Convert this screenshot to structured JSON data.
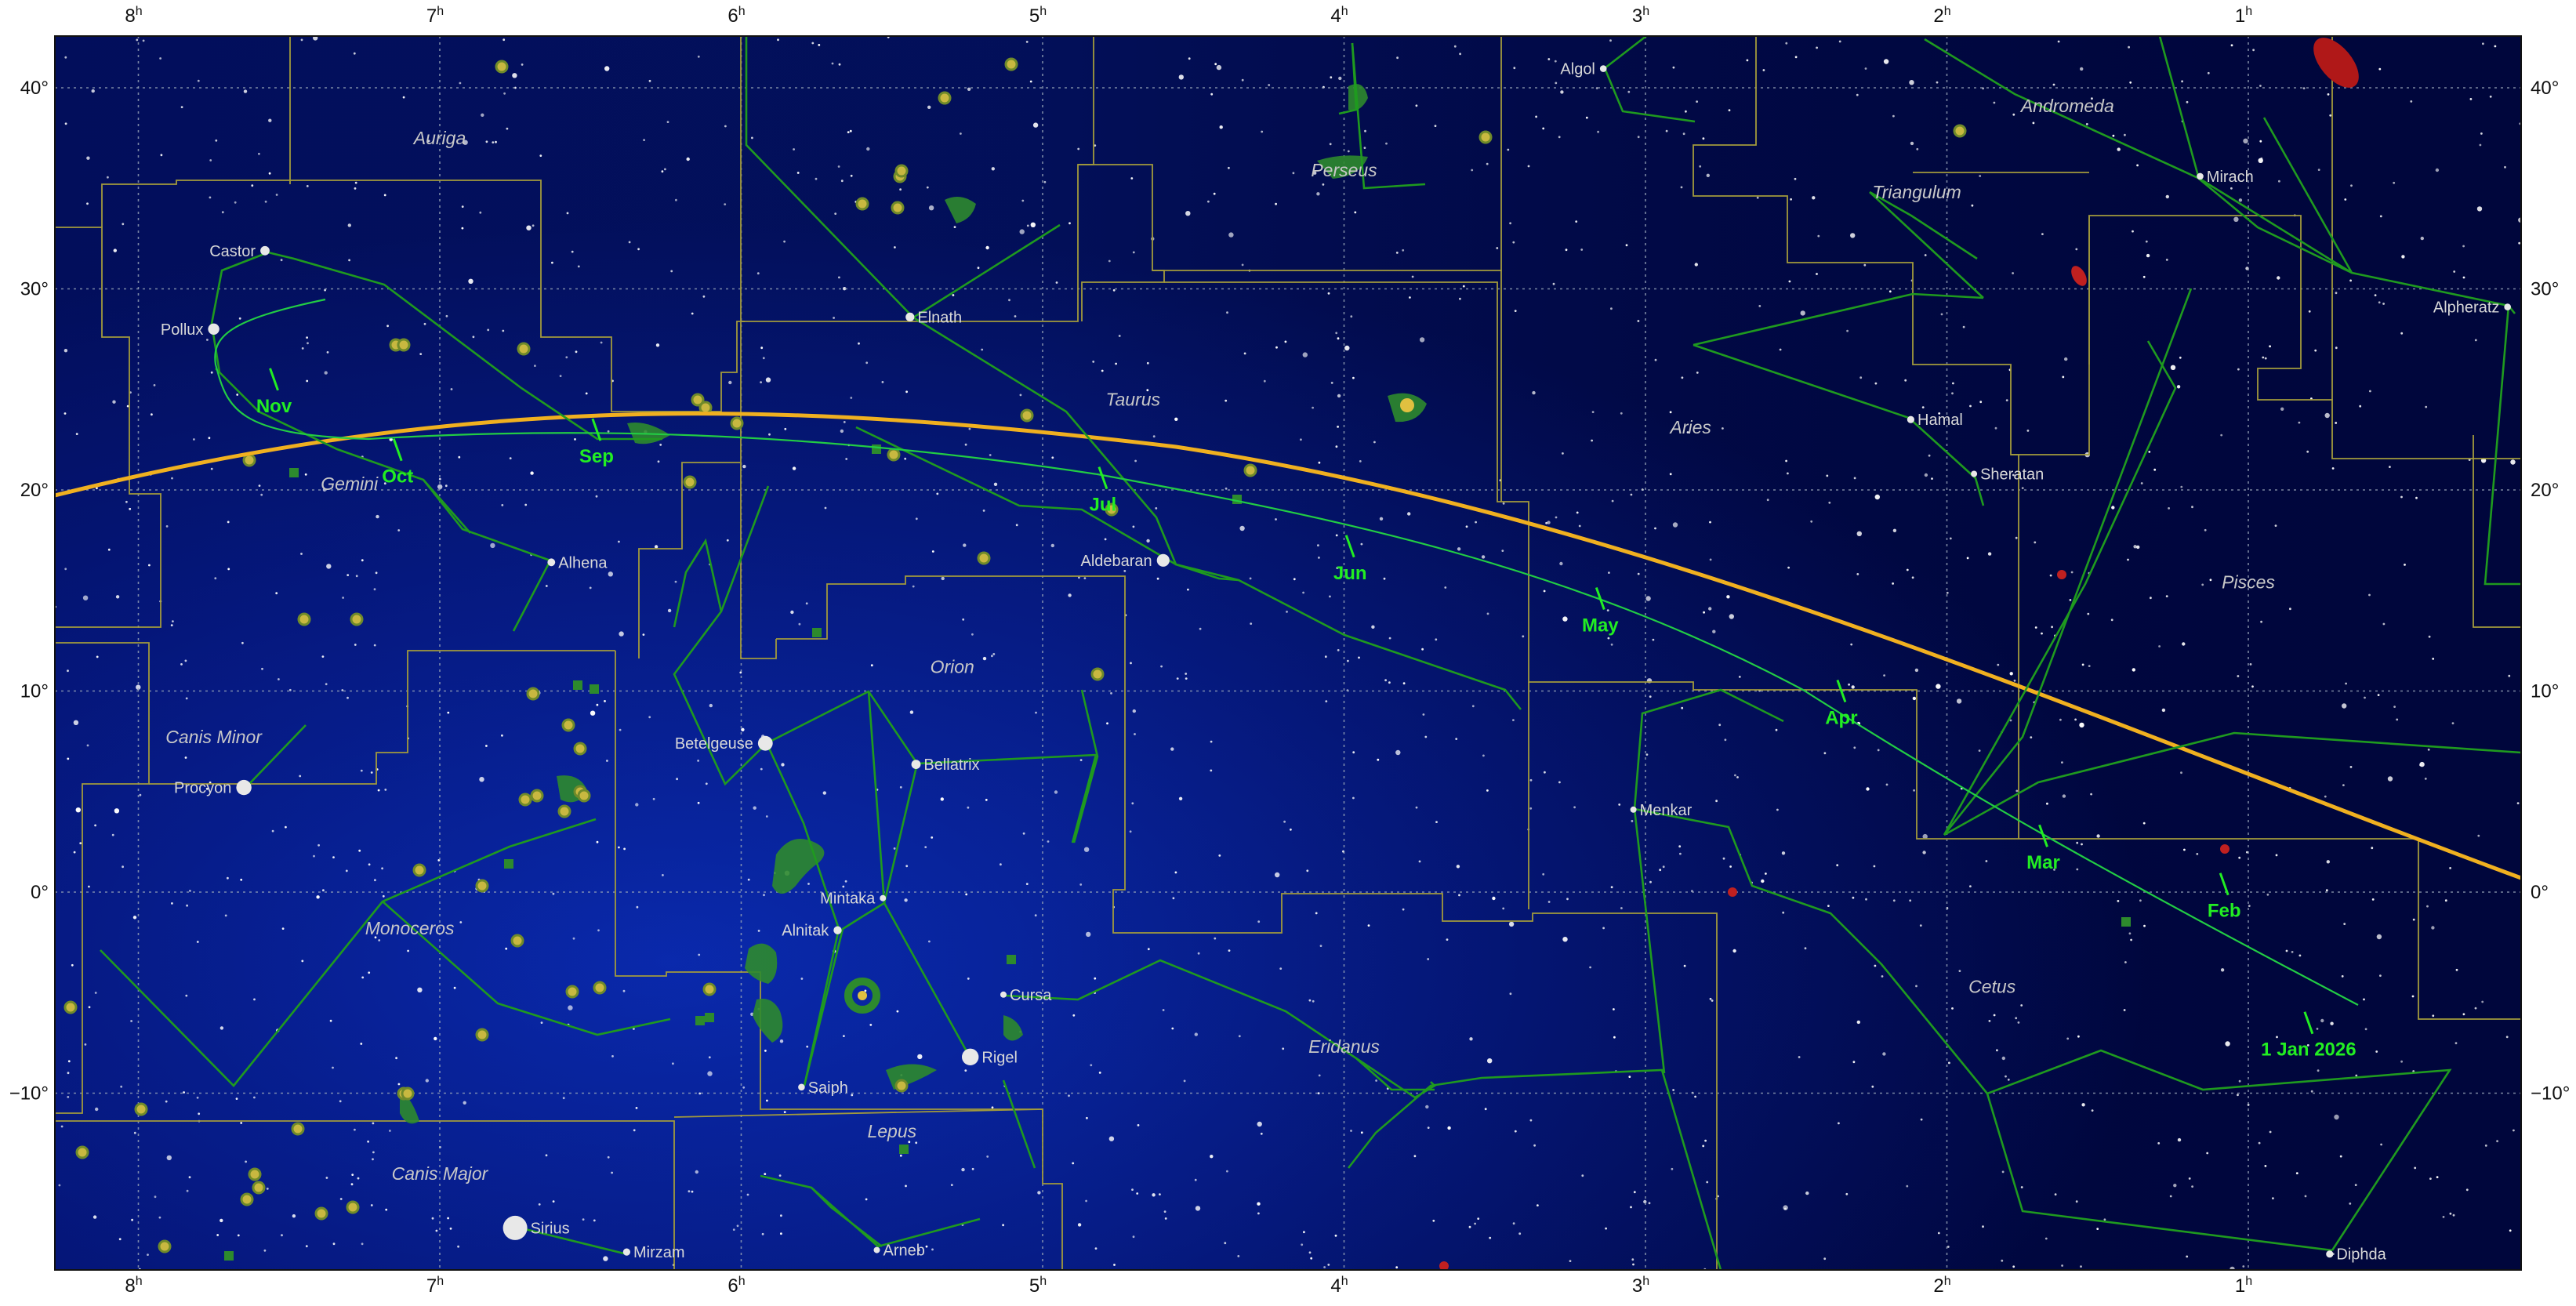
{
  "map": {
    "ra_ticks": [
      {
        "hour": 8,
        "label": "8",
        "sup": "h"
      },
      {
        "hour": 7,
        "label": "7",
        "sup": "h"
      },
      {
        "hour": 6,
        "label": "6",
        "sup": "h"
      },
      {
        "hour": 5,
        "label": "5",
        "sup": "h"
      },
      {
        "hour": 4,
        "label": "4",
        "sup": "h"
      },
      {
        "hour": 3,
        "label": "3",
        "sup": "h"
      },
      {
        "hour": 2,
        "label": "2",
        "sup": "h"
      },
      {
        "hour": 1,
        "label": "1",
        "sup": "h"
      }
    ],
    "dec_ticks": [
      {
        "deg": 40,
        "label": "40°"
      },
      {
        "deg": 30,
        "label": "30°"
      },
      {
        "deg": 20,
        "label": "20°"
      },
      {
        "deg": 10,
        "label": "10°"
      },
      {
        "deg": 0,
        "label": "0°"
      },
      {
        "deg": -10,
        "label": "−10°"
      }
    ],
    "constellations": [
      {
        "name": "Auriga",
        "ra": 7.0,
        "dec": 37.2
      },
      {
        "name": "Perseus",
        "ra": 4.0,
        "dec": 35.6
      },
      {
        "name": "Andromeda",
        "ra": 1.6,
        "dec": 38.8
      },
      {
        "name": "Triangulum",
        "ra": 2.1,
        "dec": 34.5
      },
      {
        "name": "Taurus",
        "ra": 4.7,
        "dec": 24.2
      },
      {
        "name": "Aries",
        "ra": 2.85,
        "dec": 22.8
      },
      {
        "name": "Gemini",
        "ra": 7.3,
        "dec": 20.0
      },
      {
        "name": "Pisces",
        "ra": 1.0,
        "dec": 15.1
      },
      {
        "name": "Orion",
        "ra": 5.3,
        "dec": 10.9
      },
      {
        "name": "Canis Minor",
        "ra": 7.75,
        "dec": 7.4
      },
      {
        "name": "Monoceros",
        "ra": 7.1,
        "dec": -2.1
      },
      {
        "name": "Cetus",
        "ra": 1.85,
        "dec": -5.0
      },
      {
        "name": "Eridanus",
        "ra": 4.0,
        "dec": -8.0
      },
      {
        "name": "Lepus",
        "ra": 5.5,
        "dec": -12.2
      },
      {
        "name": "Canis Major",
        "ra": 7.0,
        "dec": -14.3
      }
    ],
    "named_stars": [
      {
        "name": "Algol",
        "ra": 3.14,
        "dec": 40.95,
        "mag": 2.1
      },
      {
        "name": "Mirach",
        "ra": 1.16,
        "dec": 35.6,
        "mag": 2.1
      },
      {
        "name": "Castor",
        "ra": 7.58,
        "dec": 31.9,
        "mag": 1.6
      },
      {
        "name": "Pollux",
        "ra": 7.75,
        "dec": 28.0,
        "mag": 1.2
      },
      {
        "name": "Alpheratz",
        "ra": 0.14,
        "dec": 29.1,
        "mag": 2.1
      },
      {
        "name": "Elnath",
        "ra": 5.44,
        "dec": 28.6,
        "mag": 1.7
      },
      {
        "name": "Hamal",
        "ra": 2.12,
        "dec": 23.5,
        "mag": 2.0
      },
      {
        "name": "Sheratan",
        "ra": 1.91,
        "dec": 20.8,
        "mag": 2.6
      },
      {
        "name": "Aldebaran",
        "ra": 4.6,
        "dec": 16.5,
        "mag": 0.9
      },
      {
        "name": "Alhena",
        "ra": 6.63,
        "dec": 16.4,
        "mag": 1.9
      },
      {
        "name": "Betelgeuse",
        "ra": 5.92,
        "dec": 7.4,
        "mag": 0.5
      },
      {
        "name": "Bellatrix",
        "ra": 5.42,
        "dec": 6.35,
        "mag": 1.6
      },
      {
        "name": "Procyon",
        "ra": 7.65,
        "dec": 5.2,
        "mag": 0.4
      },
      {
        "name": "Menkar",
        "ra": 3.04,
        "dec": 4.1,
        "mag": 2.5
      },
      {
        "name": "Mintaka",
        "ra": 5.53,
        "dec": -0.3,
        "mag": 2.2
      },
      {
        "name": "Alnitak",
        "ra": 5.68,
        "dec": -1.9,
        "mag": 1.8
      },
      {
        "name": "Cursa",
        "ra": 5.13,
        "dec": -5.1,
        "mag": 2.8
      },
      {
        "name": "Rigel",
        "ra": 5.24,
        "dec": -8.2,
        "mag": 0.1
      },
      {
        "name": "Saiph",
        "ra": 5.8,
        "dec": -9.7,
        "mag": 2.1
      },
      {
        "name": "Sirius",
        "ra": 6.75,
        "dec": -16.7,
        "mag": -1.4
      },
      {
        "name": "Mirzam",
        "ra": 6.38,
        "dec": -17.9,
        "mag": 2.0
      },
      {
        "name": "Arneb",
        "ra": 5.55,
        "dec": -17.8,
        "mag": 2.6
      },
      {
        "name": "Diphda",
        "ra": 0.73,
        "dec": -18.0,
        "mag": 2.0
      }
    ],
    "path_months": [
      {
        "label": "1 Jan 2026",
        "ra": 0.8,
        "dec": -6.5
      },
      {
        "label": "Feb",
        "ra": 1.08,
        "dec": 0.4
      },
      {
        "label": "Mar",
        "ra": 1.68,
        "dec": 2.8
      },
      {
        "label": "Apr",
        "ra": 2.35,
        "dec": 10.0
      },
      {
        "label": "May",
        "ra": 3.15,
        "dec": 14.6
      },
      {
        "label": "Jun",
        "ra": 3.98,
        "dec": 17.2
      },
      {
        "label": "Jul",
        "ra": 4.8,
        "dec": 20.6
      },
      {
        "label": "Sep",
        "ra": 6.48,
        "dec": 23.0
      },
      {
        "label": "Oct",
        "ra": 7.14,
        "dec": 22.0
      },
      {
        "label": "Nov",
        "ra": 7.55,
        "dec": 25.5
      }
    ],
    "colors": {
      "sky_top": "#00063c",
      "sky_mid": "#061a8a",
      "ecliptic": "#f0b020",
      "path": "#22cc44",
      "constellation_line": "#1f9a1f",
      "boundary": "#a29a3c",
      "month_label": "#22ee22"
    }
  }
}
